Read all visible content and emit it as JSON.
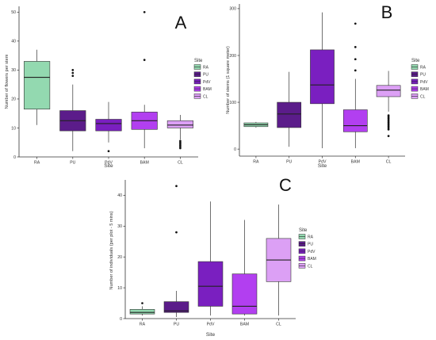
{
  "colors": {
    "RA": "#93d9b0",
    "PU": "#5b1c8a",
    "PdV": "#7a1fc0",
    "BAM": "#b23ff0",
    "CL": "#dca0f5",
    "stroke": "#333333",
    "axis": "#333333",
    "text": "#333333"
  },
  "legend_title": "Site",
  "chart_data": [
    {
      "type": "box",
      "panel_label": "A",
      "xlabel": "Site",
      "ylabel": "Number of flowers per stem",
      "ylim": [
        0,
        52
      ],
      "yticks": [
        0,
        10,
        20,
        30,
        40,
        50
      ],
      "categories": [
        "RA",
        "PU",
        "PdV",
        "BAM",
        "CL"
      ],
      "legend": [
        "RA",
        "PU",
        "PdV",
        "BAM",
        "CL"
      ],
      "boxes": [
        {
          "name": "RA",
          "min": 11,
          "q1": 16.5,
          "median": 27.5,
          "q3": 33,
          "max": 37,
          "outliers": []
        },
        {
          "name": "PU",
          "min": 2,
          "q1": 9,
          "median": 12.5,
          "q3": 16,
          "max": 25,
          "outliers": [
            28,
            29,
            30
          ]
        },
        {
          "name": "PdV",
          "min": 5,
          "q1": 9,
          "median": 11.5,
          "q3": 13,
          "max": 19,
          "outliers": [
            2
          ]
        },
        {
          "name": "BAM",
          "min": 3,
          "q1": 9.5,
          "median": 12.5,
          "q3": 15.5,
          "max": 18,
          "outliers": [
            33.5,
            50
          ]
        },
        {
          "name": "CL",
          "min": 6,
          "q1": 10,
          "median": 11,
          "q3": 12.5,
          "max": 14.5,
          "outliers": [
            3,
            3.5,
            4,
            4.5,
            5,
            5.5
          ]
        }
      ]
    },
    {
      "type": "box",
      "panel_label": "B",
      "xlabel": "Site",
      "ylabel": "Number of stems (1 square meter)",
      "ylim": [
        -15,
        310
      ],
      "yticks": [
        0,
        100,
        200,
        300
      ],
      "categories": [
        "RA",
        "PU",
        "PdV",
        "BAM",
        "CL"
      ],
      "legend": [
        "RA",
        "PU",
        "PdV",
        "BAM",
        "CL"
      ],
      "boxes": [
        {
          "name": "RA",
          "min": 46,
          "q1": 48,
          "median": 52,
          "q3": 56,
          "max": 58,
          "outliers": []
        },
        {
          "name": "PU",
          "min": 5,
          "q1": 46,
          "median": 75,
          "q3": 100,
          "max": 165,
          "outliers": []
        },
        {
          "name": "PdV",
          "min": 2,
          "q1": 97,
          "median": 137,
          "q3": 212,
          "max": 292,
          "outliers": []
        },
        {
          "name": "BAM",
          "min": 2,
          "q1": 37,
          "median": 50,
          "q3": 84,
          "max": 150,
          "outliers": [
            168,
            192,
            218,
            268
          ]
        },
        {
          "name": "CL",
          "min": 80,
          "q1": 112,
          "median": 126,
          "q3": 136,
          "max": 167,
          "outliers": [
            28,
            42,
            45,
            48,
            51,
            54,
            57,
            60,
            63,
            66,
            69,
            72
          ]
        }
      ]
    },
    {
      "type": "box",
      "panel_label": "C",
      "xlabel": "Site",
      "ylabel": "Number of individuals (per plot - 5 mins)",
      "ylim": [
        0,
        45
      ],
      "yticks": [
        0,
        10,
        20,
        30,
        40
      ],
      "categories": [
        "RA",
        "PU",
        "PdV",
        "BAM",
        "CL"
      ],
      "legend": [
        "RA",
        "PU",
        "PdV",
        "BAM",
        "CL"
      ],
      "boxes": [
        {
          "name": "RA",
          "min": 1,
          "q1": 1.5,
          "median": 2,
          "q3": 3,
          "max": 4,
          "outliers": [
            5
          ]
        },
        {
          "name": "PU",
          "min": 0.5,
          "q1": 2,
          "median": 2.5,
          "q3": 5.5,
          "max": 9,
          "outliers": [
            28,
            43
          ]
        },
        {
          "name": "PdV",
          "min": 1,
          "q1": 4,
          "median": 10.5,
          "q3": 18.5,
          "max": 38,
          "outliers": []
        },
        {
          "name": "BAM",
          "min": 1,
          "q1": 1.5,
          "median": 4,
          "q3": 14.5,
          "max": 32,
          "outliers": []
        },
        {
          "name": "CL",
          "min": 1,
          "q1": 12,
          "median": 19,
          "q3": 26,
          "max": 37,
          "outliers": []
        }
      ]
    }
  ]
}
